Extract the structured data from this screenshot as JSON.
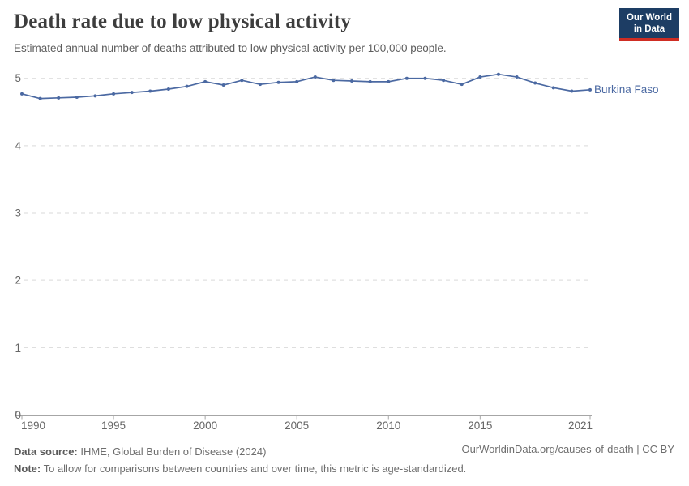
{
  "header": {
    "title": "Death rate due to low physical activity",
    "subtitle": "Estimated annual number of deaths attributed to low physical activity per 100,000 people.",
    "logo": {
      "line1": "Our World",
      "line2": "in Data"
    }
  },
  "chart_data": {
    "type": "line",
    "title": "Death rate due to low physical activity",
    "xlabel": "",
    "ylabel": "",
    "xlim": [
      1990,
      2021
    ],
    "ylim": [
      0,
      5
    ],
    "yticks": [
      0,
      1,
      2,
      3,
      4,
      5
    ],
    "xticks": [
      1990,
      1995,
      2000,
      2005,
      2010,
      2015,
      2021
    ],
    "grid": "horizontal-dashed",
    "legend_position": "end-of-line",
    "x": [
      1990,
      1991,
      1992,
      1993,
      1994,
      1995,
      1996,
      1997,
      1998,
      1999,
      2000,
      2001,
      2002,
      2003,
      2004,
      2005,
      2006,
      2007,
      2008,
      2009,
      2010,
      2011,
      2012,
      2013,
      2014,
      2015,
      2016,
      2017,
      2018,
      2019,
      2020,
      2021
    ],
    "series": [
      {
        "name": "Burkina Faso",
        "color": "#4b69a2",
        "values": [
          4.77,
          4.7,
          4.71,
          4.72,
          4.74,
          4.77,
          4.79,
          4.81,
          4.84,
          4.88,
          4.95,
          4.9,
          4.97,
          4.91,
          4.94,
          4.95,
          5.02,
          4.97,
          4.96,
          4.95,
          4.95,
          5.0,
          5.0,
          4.97,
          4.91,
          5.02,
          5.06,
          5.02,
          4.93,
          4.86,
          4.81,
          4.83
        ]
      }
    ]
  },
  "footer": {
    "datasource_label": "Data source:",
    "datasource_value": " IHME, Global Burden of Disease (2024)",
    "note_label": "Note:",
    "note_value": " To allow for comparisons between countries and over time, this metric is age-standardized.",
    "link": "OurWorldinData.org/causes-of-death | CC BY"
  },
  "colors": {
    "line": "#4b69a2",
    "grid": "#d9d9d9",
    "axis": "#a6a6a6",
    "tick_text": "#666666",
    "logo_bg": "#1d3d64",
    "logo_bar": "#cf2d23"
  }
}
